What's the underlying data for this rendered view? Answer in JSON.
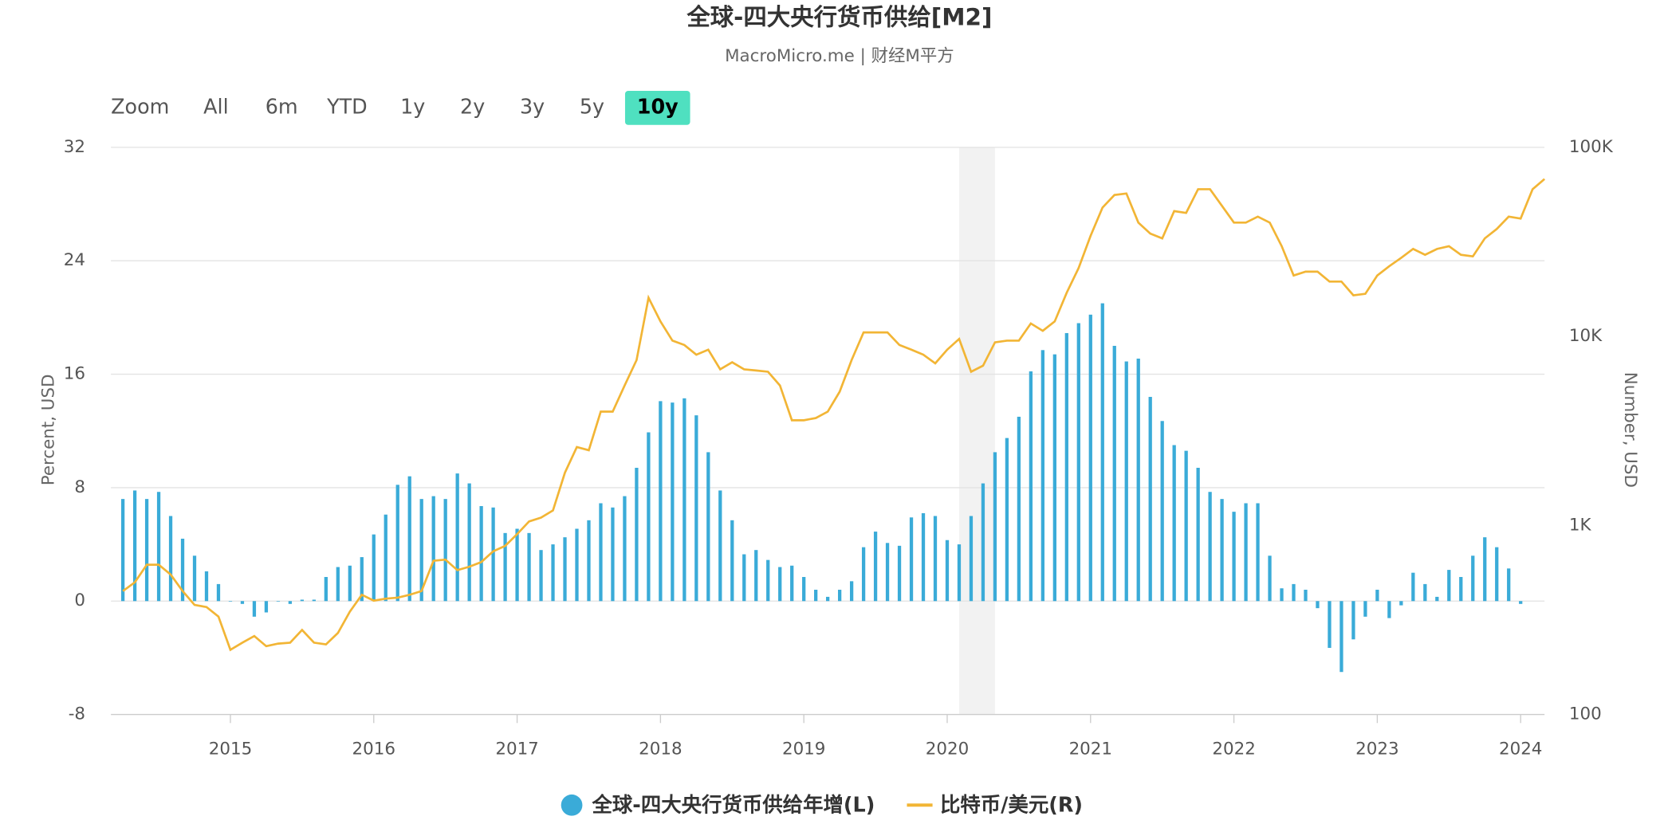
{
  "chart_data": {
    "type": "bar-line",
    "title": "全球-四大央行货币供给[M2]",
    "subtitle": "MacroMicro.me | 财经M平方",
    "range_selector": {
      "label": "Zoom",
      "buttons": [
        "All",
        "6m",
        "YTD",
        "1y",
        "2y",
        "3y",
        "5y",
        "10y"
      ],
      "selected": 7
    },
    "ylabel": "Percent, USD",
    "y2label": "Number, USD",
    "xlim": [
      "2014-03",
      "2024-03"
    ],
    "xticks": [
      {
        "value": "2015-01",
        "label": "2015"
      },
      {
        "value": "2016-01",
        "label": "2016"
      },
      {
        "value": "2017-01",
        "label": "2017"
      },
      {
        "value": "2018-01",
        "label": "2018"
      },
      {
        "value": "2019-01",
        "label": "2019"
      },
      {
        "value": "2020-01",
        "label": "2020"
      },
      {
        "value": "2021-01",
        "label": "2021"
      },
      {
        "value": "2022-01",
        "label": "2022"
      },
      {
        "value": "2023-01",
        "label": "2023"
      },
      {
        "value": "2024-01",
        "label": "2024"
      }
    ],
    "ylim": [
      -8,
      32
    ],
    "yticks": [
      -8,
      0,
      8,
      16,
      24,
      32
    ],
    "y2lim": [
      100,
      100000
    ],
    "y2ticks": [
      100,
      {
        "value": 1000,
        "label": "1K"
      },
      {
        "value": 10000,
        "label": "10K"
      },
      {
        "value": 100000,
        "label": "100K"
      }
    ],
    "y2log": true,
    "grid": true,
    "shaded_range": [
      "2020-02",
      "2020-05"
    ],
    "legend": "bottom",
    "x": [
      "2014-04",
      "2014-05",
      "2014-06",
      "2014-07",
      "2014-08",
      "2014-09",
      "2014-10",
      "2014-11",
      "2014-12",
      "2015-01",
      "2015-02",
      "2015-03",
      "2015-04",
      "2015-05",
      "2015-06",
      "2015-07",
      "2015-08",
      "2015-09",
      "2015-10",
      "2015-11",
      "2015-12",
      "2016-01",
      "2016-02",
      "2016-03",
      "2016-04",
      "2016-05",
      "2016-06",
      "2016-07",
      "2016-08",
      "2016-09",
      "2016-10",
      "2016-11",
      "2016-12",
      "2017-01",
      "2017-02",
      "2017-03",
      "2017-04",
      "2017-05",
      "2017-06",
      "2017-07",
      "2017-08",
      "2017-09",
      "2017-10",
      "2017-11",
      "2017-12",
      "2018-01",
      "2018-02",
      "2018-03",
      "2018-04",
      "2018-05",
      "2018-06",
      "2018-07",
      "2018-08",
      "2018-09",
      "2018-10",
      "2018-11",
      "2018-12",
      "2019-01",
      "2019-02",
      "2019-03",
      "2019-04",
      "2019-05",
      "2019-06",
      "2019-07",
      "2019-08",
      "2019-09",
      "2019-10",
      "2019-11",
      "2019-12",
      "2020-01",
      "2020-02",
      "2020-03",
      "2020-04",
      "2020-05",
      "2020-06",
      "2020-07",
      "2020-08",
      "2020-09",
      "2020-10",
      "2020-11",
      "2020-12",
      "2021-01",
      "2021-02",
      "2021-03",
      "2021-04",
      "2021-05",
      "2021-06",
      "2021-07",
      "2021-08",
      "2021-09",
      "2021-10",
      "2021-11",
      "2021-12",
      "2022-01",
      "2022-02",
      "2022-03",
      "2022-04",
      "2022-05",
      "2022-06",
      "2022-07",
      "2022-08",
      "2022-09",
      "2022-10",
      "2022-11",
      "2022-12",
      "2023-01",
      "2023-02",
      "2023-03",
      "2023-04",
      "2023-05",
      "2023-06",
      "2023-07",
      "2023-08",
      "2023-09",
      "2023-10",
      "2023-11",
      "2023-12",
      "2024-01",
      "2024-02",
      "2024-03"
    ],
    "series": [
      {
        "name": "全球-四大央行货币供给年增(L)",
        "type": "bar",
        "color": "#3aabd8",
        "values": [
          7.2,
          7.8,
          7.2,
          7.7,
          6.0,
          4.4,
          3.2,
          2.1,
          1.2,
          0.0,
          -0.2,
          -1.1,
          -0.8,
          0.0,
          -0.2,
          0.1,
          0.1,
          1.7,
          2.4,
          2.5,
          3.1,
          4.7,
          6.1,
          8.2,
          8.8,
          7.2,
          7.4,
          7.2,
          9.0,
          8.3,
          6.7,
          6.6,
          4.8,
          5.1,
          4.8,
          3.6,
          4.0,
          4.5,
          5.1,
          5.7,
          6.9,
          6.6,
          7.4,
          9.4,
          11.9,
          14.1,
          14.0,
          14.3,
          13.1,
          10.5,
          7.8,
          5.7,
          3.3,
          3.6,
          2.9,
          2.4,
          2.5,
          1.7,
          0.8,
          0.3,
          0.8,
          1.4,
          3.8,
          4.9,
          4.1,
          3.9,
          5.9,
          6.2,
          6.0,
          4.3,
          4.0,
          6.0,
          8.3,
          10.5,
          11.5,
          13.0,
          16.2,
          17.7,
          17.4,
          18.9,
          19.6,
          20.2,
          21.0,
          18.0,
          16.9,
          17.1,
          14.4,
          12.7,
          11.0,
          10.6,
          9.4,
          7.7,
          7.2,
          6.3,
          6.9,
          6.9,
          3.2,
          0.9,
          1.2,
          0.8,
          -0.5,
          -3.3,
          -5.0,
          -2.7,
          -1.1,
          0.8,
          -1.2,
          -0.3,
          2.0,
          1.2,
          0.3,
          2.2,
          1.7,
          3.2,
          4.5,
          3.8,
          2.3,
          -0.2,
          null,
          null
        ]
      },
      {
        "name": "比特币/美元(R)",
        "type": "line",
        "axis": "y2",
        "color": "#f2b535",
        "values": [
          450,
          500,
          620,
          620,
          550,
          450,
          380,
          370,
          330,
          220,
          240,
          260,
          230,
          237,
          240,
          280,
          240,
          235,
          270,
          350,
          430,
          400,
          410,
          415,
          430,
          450,
          650,
          660,
          580,
          605,
          640,
          730,
          780,
          900,
          1050,
          1100,
          1200,
          1900,
          2600,
          2500,
          4000,
          4000,
          5500,
          7500,
          16000,
          12000,
          9500,
          9000,
          8000,
          8500,
          6700,
          7300,
          6700,
          6600,
          6500,
          5500,
          3600,
          3600,
          3700,
          4000,
          5100,
          7500,
          10500,
          10500,
          10500,
          9000,
          8500,
          8000,
          7200,
          8500,
          9700,
          6500,
          7000,
          9300,
          9500,
          9500,
          11700,
          10700,
          12000,
          17000,
          23000,
          34000,
          48000,
          56000,
          57000,
          40000,
          35000,
          33000,
          46000,
          45000,
          60000,
          60000,
          49000,
          40000,
          40000,
          43000,
          40000,
          30000,
          21000,
          22000,
          22000,
          19500,
          19500,
          16500,
          16800,
          21000,
          23500,
          26000,
          29000,
          27000,
          29000,
          30000,
          27000,
          26500,
          33000,
          37000,
          43000,
          42000,
          60000,
          68000
        ]
      }
    ]
  }
}
